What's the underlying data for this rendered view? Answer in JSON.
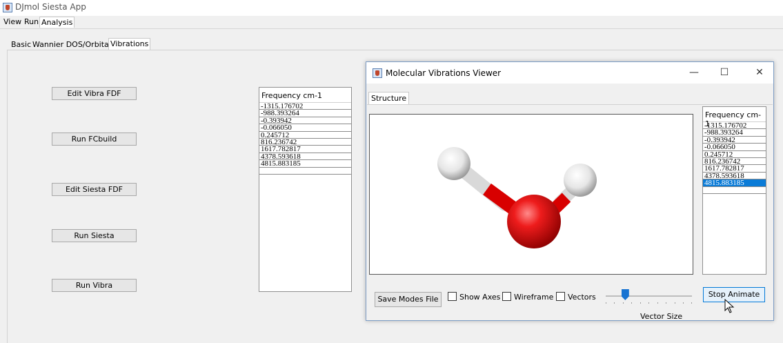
{
  "app": {
    "title": "DJmol Siesta App"
  },
  "menu": [
    {
      "label": "View"
    },
    {
      "label": "Run"
    },
    {
      "label": "Analysis"
    }
  ],
  "tabs": [
    {
      "label": "Basic"
    },
    {
      "label": "Wannier DOS/Orbitals"
    },
    {
      "label": "Vibrations"
    }
  ],
  "actions": {
    "edit_vibra": "Edit Vibra FDF",
    "run_fcbuild": "Run FCbuild",
    "edit_siesta": "Edit Siesta FDF",
    "run_siesta": "Run Siesta",
    "run_vibra": "Run Vibra"
  },
  "frequency_list": {
    "header": "Frequency cm-1",
    "items": [
      "-1315.176702",
      "-988.393264",
      "-0.393942",
      "-0.066050",
      "0.245712",
      "816.236742",
      "1617.782817",
      "4378.593618",
      "4815.883185"
    ]
  },
  "dialog": {
    "title": "Molecular Vibrations Viewer",
    "tab": "Structure",
    "window_controls": {
      "minimize": "—",
      "maximize": "☐",
      "close": "✕"
    },
    "frequency_list": {
      "header": "Frequency cm-1",
      "items": [
        "-1315.176702",
        "-988.393264",
        "-0.393942",
        "-0.066050",
        "0.245712",
        "816.236742",
        "1617.782817",
        "4378.593618",
        "4815.883185"
      ],
      "selected_index": 8
    },
    "save_modes": "Save Modes File",
    "show_axes": {
      "label": "Show Axes",
      "checked": false
    },
    "wireframe": {
      "label": "Wireframe",
      "checked": false
    },
    "vectors": {
      "label": "Vectors",
      "checked": false
    },
    "vector_size": {
      "label": "Vector Size",
      "value": 0.2
    },
    "stop_animate": "Stop Animate"
  },
  "colors": {
    "selection": "#0a7bd7",
    "oxygen": "#e00000",
    "hydrogen": "#f2f2f2"
  }
}
